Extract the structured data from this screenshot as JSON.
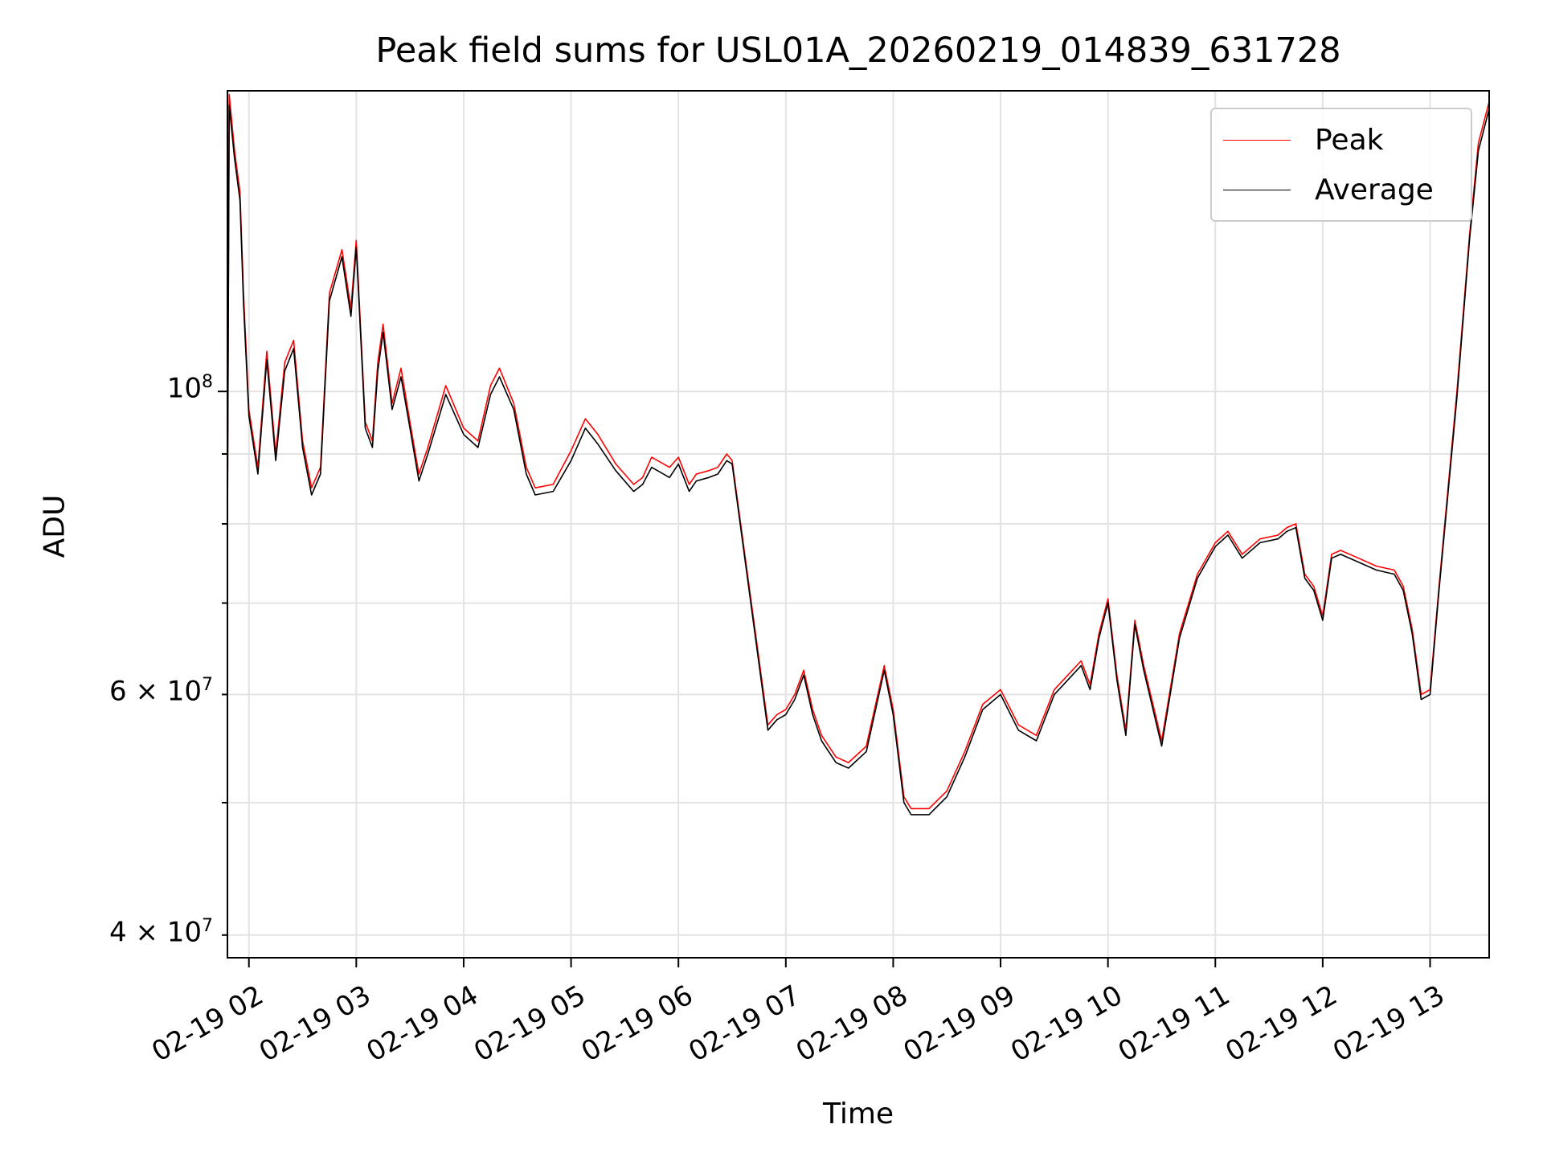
{
  "chart_data": {
    "type": "line",
    "title": "Peak field sums for USL01A_20260219_014839_631728",
    "xlabel": "Time",
    "ylabel": "ADU",
    "y_scale": "log",
    "ylim": [
      38500000,
      166000000
    ],
    "xlim": [
      "2026-02-19 01:48",
      "2026-02-19 13:33"
    ],
    "x_tick_labels": [
      "02-19 02",
      "02-19 03",
      "02-19 04",
      "02-19 05",
      "02-19 06",
      "02-19 07",
      "02-19 08",
      "02-19 09",
      "02-19 10",
      "02-19 11",
      "02-19 12",
      "02-19 13"
    ],
    "y_tick_labels": {
      "major": "10",
      "major_exp": "8",
      "m60": "6 × 10",
      "m60_exp": "7",
      "m40": "4 × 10",
      "m40_exp": "7"
    },
    "grid": true,
    "legend_position": "top-right",
    "series": [
      {
        "name": "Peak",
        "color": "#ff0000",
        "points": [
          [
            "2026-02-19 01:48",
            80000000
          ],
          [
            "2026-02-19 01:49",
            165000000
          ],
          [
            "2026-02-19 01:52",
            150000000
          ],
          [
            "2026-02-19 01:55",
            140000000
          ],
          [
            "2026-02-19 01:57",
            118000000
          ],
          [
            "2026-02-19 02:00",
            97000000
          ],
          [
            "2026-02-19 02:05",
            88000000
          ],
          [
            "2026-02-19 02:10",
            107000000
          ],
          [
            "2026-02-19 02:15",
            90000000
          ],
          [
            "2026-02-19 02:20",
            105000000
          ],
          [
            "2026-02-19 02:25",
            109000000
          ],
          [
            "2026-02-19 02:30",
            92000000
          ],
          [
            "2026-02-19 02:35",
            85000000
          ],
          [
            "2026-02-19 02:40",
            88000000
          ],
          [
            "2026-02-19 02:45",
            118000000
          ],
          [
            "2026-02-19 02:52",
            127000000
          ],
          [
            "2026-02-19 02:57",
            115000000
          ],
          [
            "2026-02-19 03:00",
            129000000
          ],
          [
            "2026-02-19 03:05",
            95000000
          ],
          [
            "2026-02-19 03:09",
            92000000
          ],
          [
            "2026-02-19 03:12",
            105000000
          ],
          [
            "2026-02-19 03:15",
            112000000
          ],
          [
            "2026-02-19 03:20",
            98000000
          ],
          [
            "2026-02-19 03:25",
            104000000
          ],
          [
            "2026-02-19 03:30",
            95000000
          ],
          [
            "2026-02-19 03:35",
            87000000
          ],
          [
            "2026-02-19 03:40",
            91000000
          ],
          [
            "2026-02-19 03:50",
            101000000
          ],
          [
            "2026-02-19 04:00",
            94000000
          ],
          [
            "2026-02-19 04:08",
            92000000
          ],
          [
            "2026-02-19 04:15",
            101000000
          ],
          [
            "2026-02-19 04:20",
            104000000
          ],
          [
            "2026-02-19 04:28",
            98000000
          ],
          [
            "2026-02-19 04:35",
            88000000
          ],
          [
            "2026-02-19 04:40",
            85000000
          ],
          [
            "2026-02-19 04:50",
            85500000
          ],
          [
            "2026-02-19 05:00",
            90500000
          ],
          [
            "2026-02-19 05:08",
            95500000
          ],
          [
            "2026-02-19 05:15",
            93000000
          ],
          [
            "2026-02-19 05:25",
            88500000
          ],
          [
            "2026-02-19 05:35",
            85500000
          ],
          [
            "2026-02-19 05:40",
            86500000
          ],
          [
            "2026-02-19 05:45",
            89500000
          ],
          [
            "2026-02-19 05:55",
            88000000
          ],
          [
            "2026-02-19 06:00",
            89500000
          ],
          [
            "2026-02-19 06:06",
            85500000
          ],
          [
            "2026-02-19 06:10",
            87000000
          ],
          [
            "2026-02-19 06:17",
            87500000
          ],
          [
            "2026-02-19 06:22",
            88000000
          ],
          [
            "2026-02-19 06:27",
            90000000
          ],
          [
            "2026-02-19 06:30",
            89000000
          ],
          [
            "2026-02-19 06:50",
            57000000
          ],
          [
            "2026-02-19 06:55",
            58000000
          ],
          [
            "2026-02-19 07:00",
            58500000
          ],
          [
            "2026-02-19 07:05",
            60000000
          ],
          [
            "2026-02-19 07:10",
            62500000
          ],
          [
            "2026-02-19 07:15",
            58500000
          ],
          [
            "2026-02-19 07:20",
            56000000
          ],
          [
            "2026-02-19 07:28",
            54000000
          ],
          [
            "2026-02-19 07:35",
            53500000
          ],
          [
            "2026-02-19 07:45",
            55000000
          ],
          [
            "2026-02-19 07:55",
            63000000
          ],
          [
            "2026-02-19 08:00",
            58500000
          ],
          [
            "2026-02-19 08:06",
            50500000
          ],
          [
            "2026-02-19 08:10",
            49500000
          ],
          [
            "2026-02-19 08:20",
            49500000
          ],
          [
            "2026-02-19 08:30",
            51000000
          ],
          [
            "2026-02-19 08:40",
            54500000
          ],
          [
            "2026-02-19 08:50",
            59000000
          ],
          [
            "2026-02-19 09:00",
            60500000
          ],
          [
            "2026-02-19 09:10",
            57000000
          ],
          [
            "2026-02-19 09:20",
            56000000
          ],
          [
            "2026-02-19 09:30",
            60500000
          ],
          [
            "2026-02-19 09:45",
            63500000
          ],
          [
            "2026-02-19 09:50",
            61000000
          ],
          [
            "2026-02-19 09:55",
            66500000
          ],
          [
            "2026-02-19 10:00",
            70500000
          ],
          [
            "2026-02-19 10:05",
            62000000
          ],
          [
            "2026-02-19 10:10",
            56500000
          ],
          [
            "2026-02-19 10:15",
            68000000
          ],
          [
            "2026-02-19 10:20",
            63000000
          ],
          [
            "2026-02-19 10:30",
            55500000
          ],
          [
            "2026-02-19 10:40",
            66500000
          ],
          [
            "2026-02-19 10:50",
            73500000
          ],
          [
            "2026-02-19 11:00",
            77500000
          ],
          [
            "2026-02-19 11:07",
            79000000
          ],
          [
            "2026-02-19 11:15",
            76000000
          ],
          [
            "2026-02-19 11:25",
            78000000
          ],
          [
            "2026-02-19 11:35",
            78500000
          ],
          [
            "2026-02-19 11:40",
            79500000
          ],
          [
            "2026-02-19 11:45",
            80000000
          ],
          [
            "2026-02-19 11:50",
            73500000
          ],
          [
            "2026-02-19 11:55",
            72000000
          ],
          [
            "2026-02-19 12:00",
            68500000
          ],
          [
            "2026-02-19 12:05",
            76000000
          ],
          [
            "2026-02-19 12:10",
            76500000
          ],
          [
            "2026-02-19 12:20",
            75500000
          ],
          [
            "2026-02-19 12:30",
            74500000
          ],
          [
            "2026-02-19 12:40",
            74000000
          ],
          [
            "2026-02-19 12:45",
            72000000
          ],
          [
            "2026-02-19 12:50",
            67000000
          ],
          [
            "2026-02-19 12:55",
            60000000
          ],
          [
            "2026-02-19 13:00",
            60500000
          ],
          [
            "2026-02-19 13:05",
            72000000
          ],
          [
            "2026-02-19 13:15",
            100000000
          ],
          [
            "2026-02-19 13:22",
            130000000
          ],
          [
            "2026-02-19 13:27",
            152000000
          ],
          [
            "2026-02-19 13:33",
            163000000
          ]
        ]
      },
      {
        "name": "Average",
        "color": "#000000",
        "points": [
          [
            "2026-02-19 01:48",
            78000000
          ],
          [
            "2026-02-19 01:49",
            162000000
          ],
          [
            "2026-02-19 01:52",
            148000000
          ],
          [
            "2026-02-19 01:55",
            138000000
          ],
          [
            "2026-02-19 01:57",
            116000000
          ],
          [
            "2026-02-19 02:00",
            96000000
          ],
          [
            "2026-02-19 02:05",
            87000000
          ],
          [
            "2026-02-19 02:10",
            105500000
          ],
          [
            "2026-02-19 02:15",
            89000000
          ],
          [
            "2026-02-19 02:20",
            103500000
          ],
          [
            "2026-02-19 02:25",
            107500000
          ],
          [
            "2026-02-19 02:30",
            91000000
          ],
          [
            "2026-02-19 02:35",
            84000000
          ],
          [
            "2026-02-19 02:40",
            87000000
          ],
          [
            "2026-02-19 02:45",
            116500000
          ],
          [
            "2026-02-19 02:52",
            125500000
          ],
          [
            "2026-02-19 02:57",
            113500000
          ],
          [
            "2026-02-19 03:00",
            127500000
          ],
          [
            "2026-02-19 03:05",
            94000000
          ],
          [
            "2026-02-19 03:09",
            91000000
          ],
          [
            "2026-02-19 03:12",
            103500000
          ],
          [
            "2026-02-19 03:15",
            110500000
          ],
          [
            "2026-02-19 03:20",
            97000000
          ],
          [
            "2026-02-19 03:25",
            102500000
          ],
          [
            "2026-02-19 03:30",
            94000000
          ],
          [
            "2026-02-19 03:35",
            86000000
          ],
          [
            "2026-02-19 03:40",
            90000000
          ],
          [
            "2026-02-19 03:50",
            99500000
          ],
          [
            "2026-02-19 04:00",
            93000000
          ],
          [
            "2026-02-19 04:08",
            91000000
          ],
          [
            "2026-02-19 04:15",
            99500000
          ],
          [
            "2026-02-19 04:20",
            102500000
          ],
          [
            "2026-02-19 04:28",
            97000000
          ],
          [
            "2026-02-19 04:35",
            87000000
          ],
          [
            "2026-02-19 04:40",
            84000000
          ],
          [
            "2026-02-19 04:50",
            84500000
          ],
          [
            "2026-02-19 05:00",
            89000000
          ],
          [
            "2026-02-19 05:08",
            94000000
          ],
          [
            "2026-02-19 05:15",
            91500000
          ],
          [
            "2026-02-19 05:25",
            87500000
          ],
          [
            "2026-02-19 05:35",
            84500000
          ],
          [
            "2026-02-19 05:40",
            85500000
          ],
          [
            "2026-02-19 05:45",
            88000000
          ],
          [
            "2026-02-19 05:55",
            86500000
          ],
          [
            "2026-02-19 06:00",
            88500000
          ],
          [
            "2026-02-19 06:06",
            84500000
          ],
          [
            "2026-02-19 06:10",
            86000000
          ],
          [
            "2026-02-19 06:17",
            86500000
          ],
          [
            "2026-02-19 06:22",
            87000000
          ],
          [
            "2026-02-19 06:27",
            89000000
          ],
          [
            "2026-02-19 06:30",
            88500000
          ],
          [
            "2026-02-19 06:50",
            56500000
          ],
          [
            "2026-02-19 06:55",
            57500000
          ],
          [
            "2026-02-19 07:00",
            58000000
          ],
          [
            "2026-02-19 07:05",
            59500000
          ],
          [
            "2026-02-19 07:10",
            62000000
          ],
          [
            "2026-02-19 07:15",
            58000000
          ],
          [
            "2026-02-19 07:20",
            55500000
          ],
          [
            "2026-02-19 07:28",
            53500000
          ],
          [
            "2026-02-19 07:35",
            53000000
          ],
          [
            "2026-02-19 07:45",
            54500000
          ],
          [
            "2026-02-19 07:55",
            62500000
          ],
          [
            "2026-02-19 08:00",
            58000000
          ],
          [
            "2026-02-19 08:06",
            50000000
          ],
          [
            "2026-02-19 08:10",
            49000000
          ],
          [
            "2026-02-19 08:20",
            49000000
          ],
          [
            "2026-02-19 08:30",
            50500000
          ],
          [
            "2026-02-19 08:40",
            54000000
          ],
          [
            "2026-02-19 08:50",
            58500000
          ],
          [
            "2026-02-19 09:00",
            60000000
          ],
          [
            "2026-02-19 09:10",
            56500000
          ],
          [
            "2026-02-19 09:20",
            55500000
          ],
          [
            "2026-02-19 09:30",
            60000000
          ],
          [
            "2026-02-19 09:45",
            63000000
          ],
          [
            "2026-02-19 09:50",
            60500000
          ],
          [
            "2026-02-19 09:55",
            66000000
          ],
          [
            "2026-02-19 10:00",
            70000000
          ],
          [
            "2026-02-19 10:05",
            61500000
          ],
          [
            "2026-02-19 10:10",
            56000000
          ],
          [
            "2026-02-19 10:15",
            67500000
          ],
          [
            "2026-02-19 10:20",
            62500000
          ],
          [
            "2026-02-19 10:30",
            55000000
          ],
          [
            "2026-02-19 10:40",
            66000000
          ],
          [
            "2026-02-19 10:50",
            73000000
          ],
          [
            "2026-02-19 11:00",
            77000000
          ],
          [
            "2026-02-19 11:07",
            78500000
          ],
          [
            "2026-02-19 11:15",
            75500000
          ],
          [
            "2026-02-19 11:25",
            77500000
          ],
          [
            "2026-02-19 11:35",
            78000000
          ],
          [
            "2026-02-19 11:40",
            79000000
          ],
          [
            "2026-02-19 11:45",
            79500000
          ],
          [
            "2026-02-19 11:50",
            73000000
          ],
          [
            "2026-02-19 11:55",
            71500000
          ],
          [
            "2026-02-19 12:00",
            68000000
          ],
          [
            "2026-02-19 12:05",
            75500000
          ],
          [
            "2026-02-19 12:10",
            76000000
          ],
          [
            "2026-02-19 12:20",
            75000000
          ],
          [
            "2026-02-19 12:30",
            74000000
          ],
          [
            "2026-02-19 12:40",
            73500000
          ],
          [
            "2026-02-19 12:45",
            71500000
          ],
          [
            "2026-02-19 12:50",
            66500000
          ],
          [
            "2026-02-19 12:55",
            59500000
          ],
          [
            "2026-02-19 13:00",
            60000000
          ],
          [
            "2026-02-19 13:05",
            71500000
          ],
          [
            "2026-02-19 13:15",
            99000000
          ],
          [
            "2026-02-19 13:22",
            129000000
          ],
          [
            "2026-02-19 13:27",
            150000000
          ],
          [
            "2026-02-19 13:33",
            161000000
          ]
        ]
      }
    ]
  }
}
